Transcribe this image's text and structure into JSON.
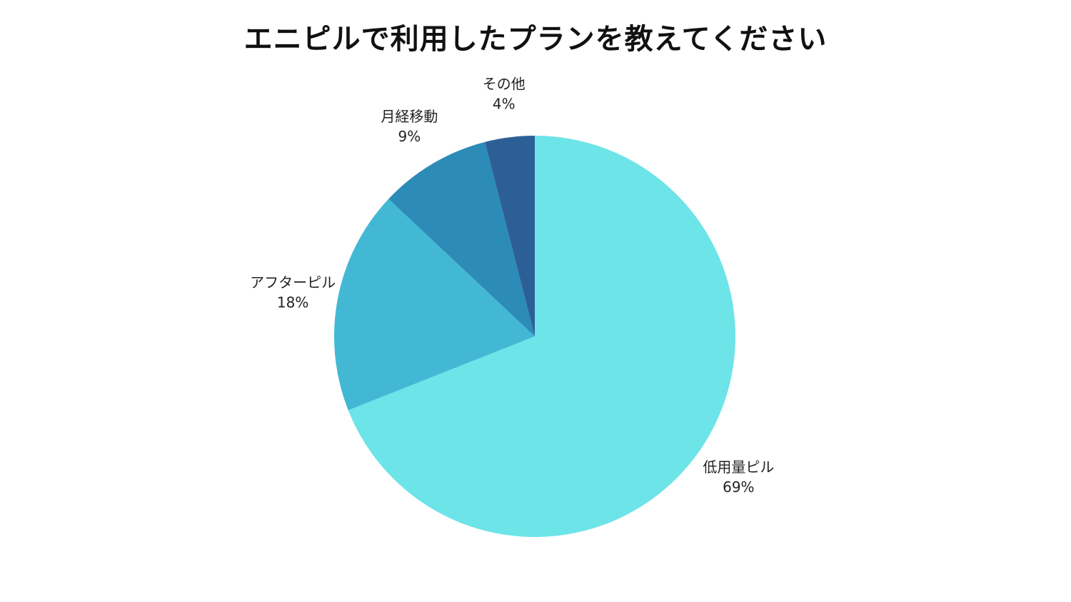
{
  "chart_data": {
    "type": "pie",
    "title": "エニピルで利用したプランを教えてください",
    "slices": [
      {
        "label": "低用量ピル",
        "value": 69,
        "value_label": "69%",
        "color": "#6ce4e8"
      },
      {
        "label": "アフターピル",
        "value": 18,
        "value_label": "18%",
        "color": "#42b8d5"
      },
      {
        "label": "月経移動",
        "value": 9,
        "value_label": "9%",
        "color": "#2d8bb7"
      },
      {
        "label": "その他",
        "value": 4,
        "value_label": "4%",
        "color": "#2d5f97"
      }
    ],
    "start_angle": "12 o'clock",
    "direction": "clockwise",
    "legend": "none"
  }
}
